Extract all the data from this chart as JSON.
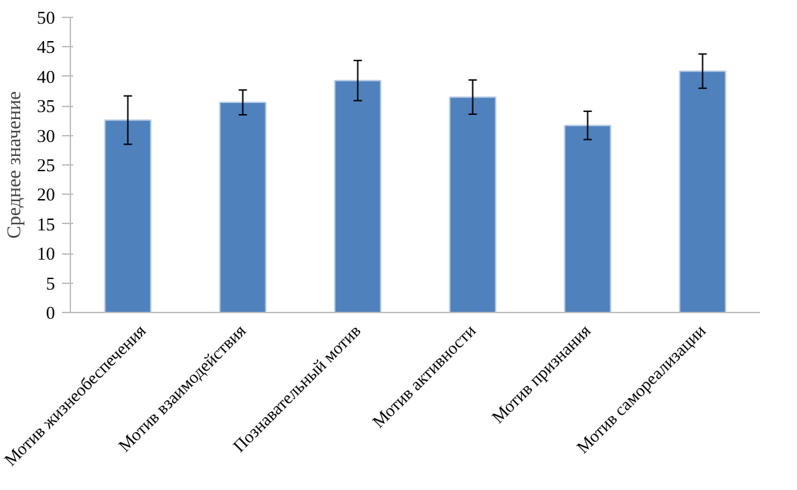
{
  "chart_data": {
    "type": "bar",
    "ylabel": "Среднее значение",
    "categories": [
      "Мотив жизнеобеспечения",
      "Мотив взаимодействия",
      "Познавательный мотив",
      "Мотив активности",
      "Мотив признания",
      "Мотив самореализации"
    ],
    "values": [
      32.6,
      35.6,
      39.3,
      36.5,
      31.7,
      40.9
    ],
    "errors": [
      4.1,
      2.1,
      3.4,
      2.9,
      2.4,
      2.9
    ],
    "color": "#4f81bd",
    "ylim": [
      0,
      50
    ],
    "yticks": [
      0,
      5,
      10,
      15,
      20,
      25,
      30,
      35,
      40,
      45,
      50
    ],
    "grid": false
  }
}
